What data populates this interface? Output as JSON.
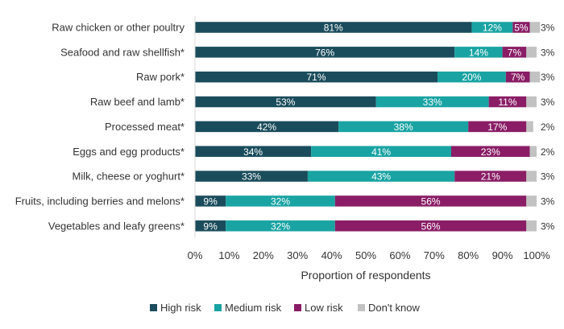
{
  "chart_data": {
    "type": "bar",
    "orientation": "horizontal",
    "stacked": true,
    "categories": [
      "Raw chicken or other poultry",
      "Seafood and raw shellfish*",
      "Raw pork*",
      "Raw beef and lamb*",
      "Processed meat*",
      "Eggs and egg products*",
      "Milk, cheese or yoghurt*",
      "Fruits, including berries and melons*",
      "Vegetables and leafy greens*"
    ],
    "series": [
      {
        "name": "High risk",
        "color": "#1a4c5c",
        "values": [
          81,
          76,
          71,
          53,
          42,
          34,
          33,
          9,
          9
        ]
      },
      {
        "name": "Medium risk",
        "color": "#1aa3a3",
        "values": [
          12,
          14,
          20,
          33,
          38,
          41,
          43,
          32,
          32
        ]
      },
      {
        "name": "Low risk",
        "color": "#8a1d66",
        "values": [
          5,
          7,
          7,
          11,
          17,
          23,
          21,
          56,
          56
        ]
      },
      {
        "name": "Don't know",
        "color": "#c2c2c2",
        "values": [
          3,
          3,
          3,
          3,
          2,
          2,
          3,
          3,
          3
        ]
      }
    ],
    "data_labels": [
      [
        "81%",
        "12%",
        "5%",
        "3%"
      ],
      [
        "76%",
        "14%",
        "7%",
        "3%"
      ],
      [
        "71%",
        "20%",
        "7%",
        "3%"
      ],
      [
        "53%",
        "33%",
        "11%",
        "3%"
      ],
      [
        "42%",
        "38%",
        "17%",
        "2%"
      ],
      [
        "34%",
        "41%",
        "23%",
        "2%"
      ],
      [
        "33%",
        "43%",
        "21%",
        "3%"
      ],
      [
        "9%",
        "32%",
        "56%",
        "3%"
      ],
      [
        "9%",
        "32%",
        "56%",
        "3%"
      ]
    ],
    "xlabel": "Proportion of respondents",
    "xlim": [
      0,
      100
    ],
    "xticks": [
      "0%",
      "10%",
      "20%",
      "30%",
      "40%",
      "50%",
      "60%",
      "70%",
      "80%",
      "90%",
      "100%"
    ],
    "grid": false,
    "legend_position": "bottom"
  }
}
